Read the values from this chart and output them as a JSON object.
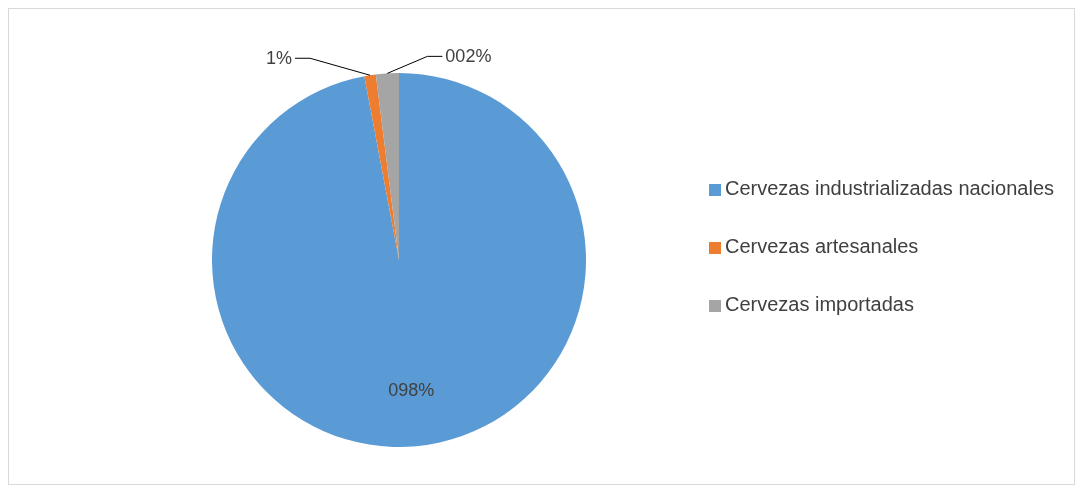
{
  "chart_data": {
    "type": "pie",
    "categories": [
      "Cervezas industrializadas nacionales",
      "Cervezas artesanales",
      "Cervezas importadas"
    ],
    "values": [
      98,
      1,
      2
    ],
    "colors": [
      "#5b9bd5",
      "#ed7d31",
      "#a5a5a5"
    ],
    "value_labels": [
      "098%",
      "1%",
      "002%"
    ],
    "legend": "right"
  }
}
